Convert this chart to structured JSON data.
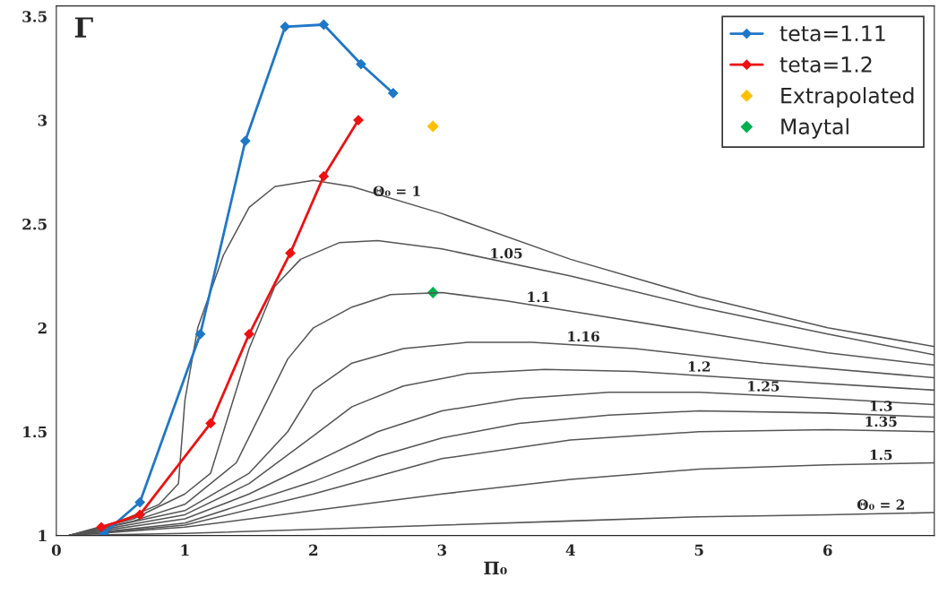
{
  "chart_data": {
    "type": "line",
    "xlabel": "Π₀",
    "ylabel": "Γ",
    "xlim": [
      0,
      6.83
    ],
    "ylim": [
      1,
      3.55
    ],
    "xticks": [
      0,
      1,
      2,
      3,
      4,
      5,
      6
    ],
    "yticks": [
      1,
      1.5,
      2,
      2.5,
      3,
      3.5
    ],
    "grid": false,
    "legend": "top right",
    "series": [
      {
        "name": "Θ₀ = 1",
        "color": "#555555",
        "marker": "none",
        "x": [
          0.1,
          0.5,
          0.8,
          0.95,
          1.0,
          1.1,
          1.3,
          1.5,
          1.7,
          2.0,
          2.3,
          3,
          4,
          5,
          6,
          6.83
        ],
        "values": [
          1.0,
          1.07,
          1.15,
          1.25,
          1.65,
          2.0,
          2.35,
          2.58,
          2.68,
          2.71,
          2.68,
          2.55,
          2.33,
          2.15,
          2.0,
          1.91
        ]
      },
      {
        "name": "1.05",
        "color": "#555555",
        "marker": "none",
        "x": [
          0.1,
          0.6,
          1.0,
          1.2,
          1.35,
          1.5,
          1.7,
          1.9,
          2.2,
          2.5,
          3,
          4,
          5,
          6,
          6.83
        ],
        "values": [
          1.0,
          1.08,
          1.2,
          1.3,
          1.6,
          1.9,
          2.2,
          2.33,
          2.41,
          2.42,
          2.38,
          2.25,
          2.1,
          1.97,
          1.87
        ]
      },
      {
        "name": "1.1",
        "color": "#555555",
        "marker": "none",
        "x": [
          0.1,
          0.6,
          1,
          1.4,
          1.6,
          1.8,
          2.0,
          2.3,
          2.6,
          3,
          3.5,
          4,
          5,
          6,
          6.83
        ],
        "values": [
          1.0,
          1.07,
          1.15,
          1.35,
          1.6,
          1.85,
          2.0,
          2.1,
          2.16,
          2.17,
          2.13,
          2.08,
          1.98,
          1.88,
          1.82
        ]
      },
      {
        "name": "1.16",
        "color": "#555555",
        "marker": "none",
        "x": [
          0.1,
          1,
          1.5,
          1.8,
          2.0,
          2.3,
          2.7,
          3.2,
          3.7,
          4.5,
          5.5,
          6.83
        ],
        "values": [
          1.0,
          1.12,
          1.3,
          1.5,
          1.7,
          1.83,
          1.9,
          1.93,
          1.93,
          1.9,
          1.83,
          1.76
        ]
      },
      {
        "name": "1.2",
        "color": "#555555",
        "marker": "none",
        "x": [
          0.1,
          1,
          1.5,
          2,
          2.3,
          2.7,
          3.2,
          3.8,
          4.5,
          5.5,
          6.83
        ],
        "values": [
          1.0,
          1.1,
          1.25,
          1.48,
          1.62,
          1.72,
          1.78,
          1.8,
          1.79,
          1.75,
          1.7
        ]
      },
      {
        "name": "1.25",
        "color": "#555555",
        "marker": "none",
        "x": [
          0.1,
          1,
          1.5,
          2,
          2.5,
          3,
          3.6,
          4.3,
          5,
          6,
          6.83
        ],
        "values": [
          1.0,
          1.08,
          1.2,
          1.35,
          1.5,
          1.6,
          1.66,
          1.69,
          1.69,
          1.66,
          1.63
        ]
      },
      {
        "name": "1.3",
        "color": "#555555",
        "marker": "none",
        "x": [
          0.1,
          1,
          2,
          2.5,
          3,
          3.6,
          4.3,
          5,
          6,
          6.83
        ],
        "values": [
          1.0,
          1.06,
          1.26,
          1.38,
          1.47,
          1.54,
          1.58,
          1.6,
          1.59,
          1.57
        ]
      },
      {
        "name": "1.35",
        "color": "#555555",
        "marker": "none",
        "x": [
          0.1,
          1,
          2,
          3,
          4,
          5,
          6,
          6.83
        ],
        "values": [
          1.0,
          1.05,
          1.2,
          1.37,
          1.46,
          1.5,
          1.51,
          1.5
        ]
      },
      {
        "name": "1.5",
        "color": "#555555",
        "marker": "none",
        "x": [
          0.1,
          1,
          2,
          3,
          4,
          5,
          6,
          6.83
        ],
        "values": [
          1.0,
          1.04,
          1.12,
          1.2,
          1.27,
          1.32,
          1.34,
          1.35
        ]
      },
      {
        "name": "Θ₀ = 2",
        "color": "#555555",
        "marker": "none",
        "x": [
          0.1,
          1,
          2,
          3,
          4,
          5,
          6,
          6.83
        ],
        "values": [
          1.0,
          1.01,
          1.03,
          1.05,
          1.07,
          1.09,
          1.1,
          1.11
        ]
      },
      {
        "name": "teta=1.11",
        "color": "#1f77c8",
        "marker": "diamond",
        "x": [
          0.37,
          0.65,
          1.12,
          1.47,
          1.78,
          2.08,
          2.37,
          2.62
        ],
        "values": [
          1.01,
          1.16,
          1.97,
          2.9,
          3.45,
          3.46,
          3.27,
          3.13
        ]
      },
      {
        "name": "teta=1.2",
        "color": "#ee1111",
        "marker": "diamond",
        "x": [
          0.35,
          0.65,
          1.2,
          1.5,
          1.82,
          2.08,
          2.35
        ],
        "values": [
          1.04,
          1.1,
          1.54,
          1.97,
          2.36,
          2.73,
          3.0
        ]
      },
      {
        "name": "Extrapolated",
        "type": "scatter",
        "color": "#ffc000",
        "marker": "diamond",
        "x": [
          2.93
        ],
        "values": [
          2.97
        ]
      },
      {
        "name": "Maytal",
        "type": "scatter",
        "color": "#00b050",
        "marker": "diamond",
        "x": [
          2.93
        ],
        "values": [
          2.17
        ]
      }
    ]
  }
}
